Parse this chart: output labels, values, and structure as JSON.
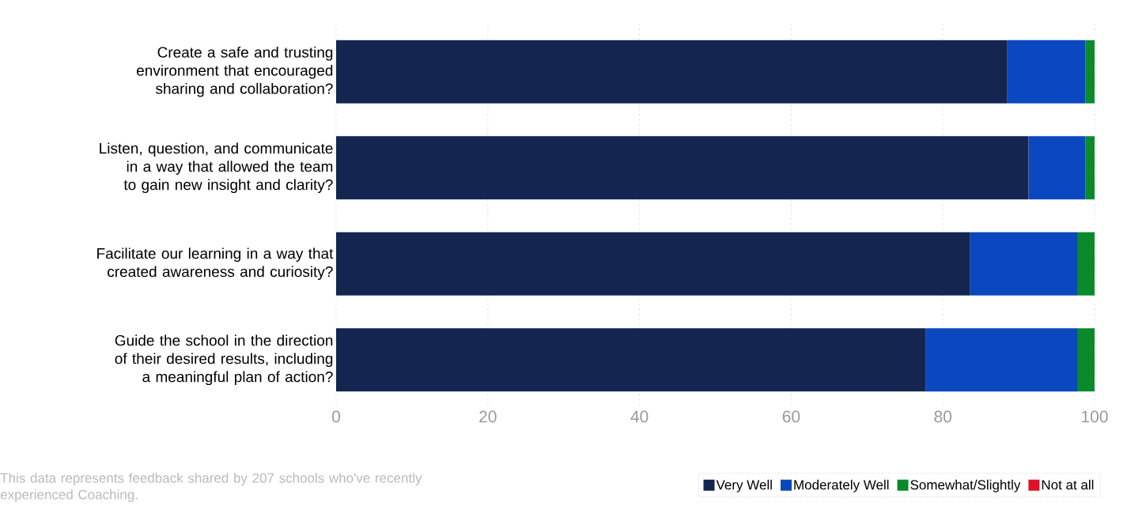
{
  "chart_data": {
    "type": "bar",
    "orientation": "horizontal",
    "stacked": true,
    "categories": [
      "Create a safe and trusting environment that encouraged sharing and collaboration?",
      "Listen, question, and communicate in a way that allowed the team to gain new insight and clarity?",
      "Facilitate our learning in a way that created awareness and curiosity?",
      "Guide the school in the direction of their desired results, including a meaningful plan of action?"
    ],
    "series": [
      {
        "name": "Very Well",
        "color": "#14254f",
        "values": [
          88.5,
          91.3,
          83.6,
          77.7
        ]
      },
      {
        "name": "Moderately Well",
        "color": "#0a48c0",
        "values": [
          10.3,
          7.5,
          14.2,
          20.1
        ]
      },
      {
        "name": "Somewhat/Slightly",
        "color": "#0a8a2a",
        "values": [
          1.2,
          1.2,
          2.2,
          2.2
        ]
      },
      {
        "name": "Not at all",
        "color": "#e0102a",
        "values": [
          0,
          0,
          0,
          0
        ]
      }
    ],
    "xlim": [
      0,
      100
    ],
    "xticks": [
      0,
      20,
      40,
      60,
      80,
      100
    ],
    "grid": "x",
    "legend": "bottom right",
    "annotations": [
      "This data represents feedback shared by 207 schools who've recently experienced Coaching."
    ]
  }
}
